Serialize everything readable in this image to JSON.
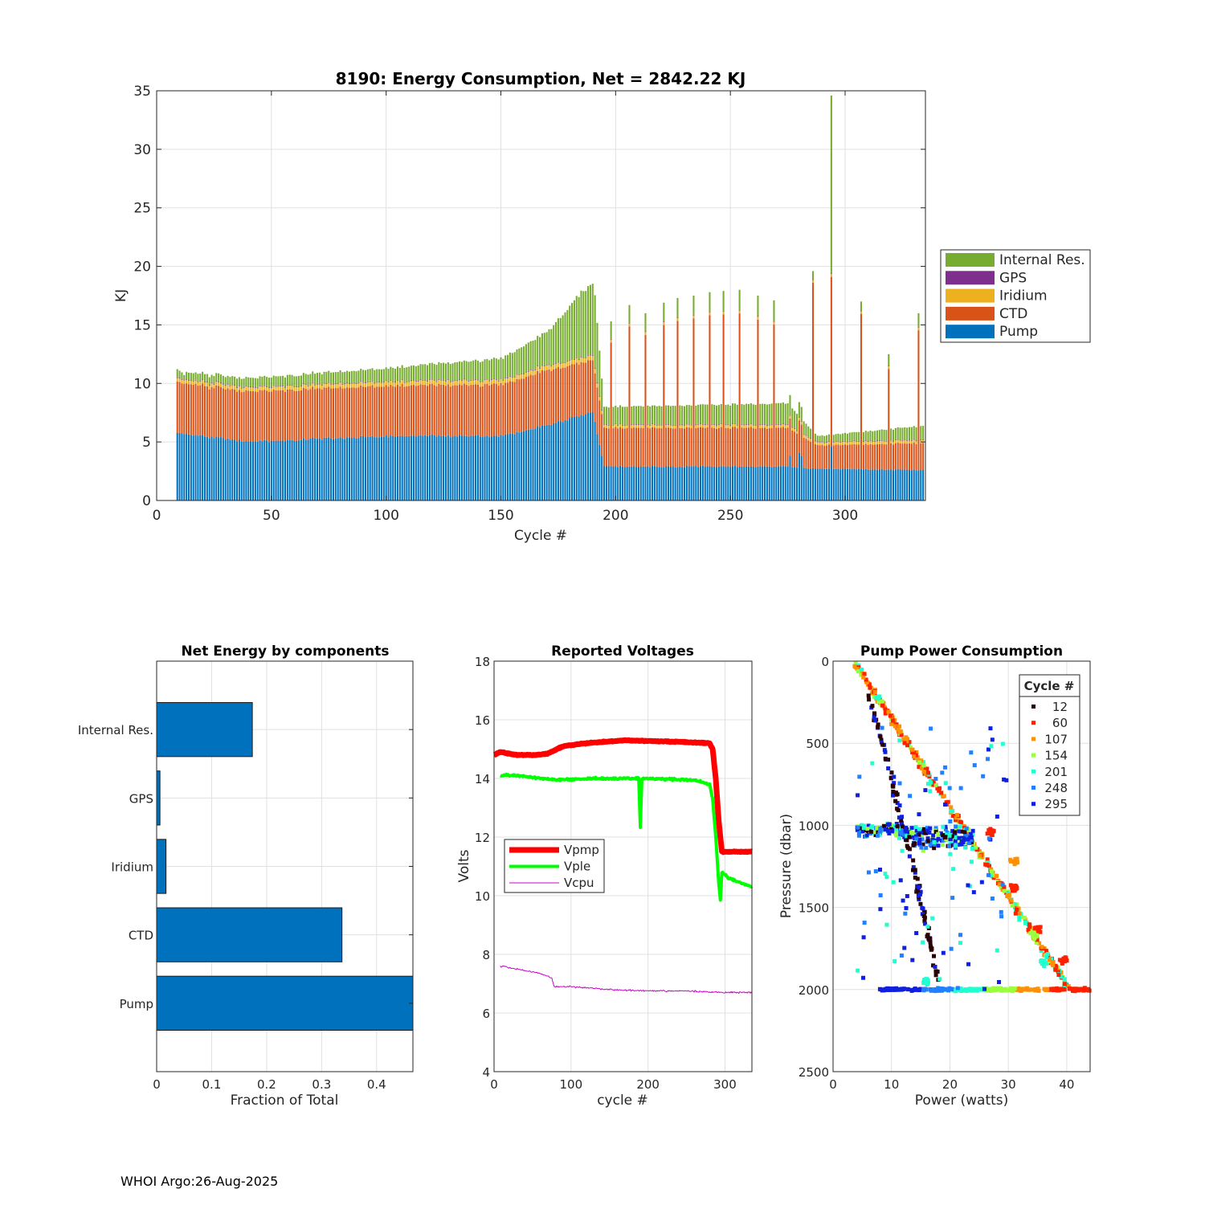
{
  "footer": "WHOI Argo:26-Aug-2025",
  "colors": {
    "pump": "#0072BD",
    "ctd": "#D95319",
    "iridium": "#EDB120",
    "gps": "#7E2F8E",
    "internal": "#77AC30",
    "vpmp": "#FF0000",
    "vple": "#00FF00",
    "vcpu": "#CC00CC",
    "grid": "#E0E0E0"
  },
  "chart_data": [
    {
      "type": "bar",
      "stacked": true,
      "title": "8190: Energy Consumption,  Net = 2842.22 KJ",
      "xlabel": "Cycle #",
      "ylabel": "KJ",
      "xlim": [
        0,
        335
      ],
      "ylim": [
        0,
        35
      ],
      "xticks": [
        0,
        50,
        100,
        150,
        200,
        250,
        300
      ],
      "yticks": [
        0,
        5,
        10,
        15,
        20,
        25,
        30,
        35
      ],
      "legend": [
        "Internal Res.",
        "GPS",
        "Iridium",
        "CTD",
        "Pump"
      ],
      "legend_position": "right-outside",
      "series_profile": {
        "pump_kj": [
          [
            9,
            5.8
          ],
          [
            40,
            5.0
          ],
          [
            100,
            5.5
          ],
          [
            150,
            5.5
          ],
          [
            170,
            6.4
          ],
          [
            190,
            7.6
          ],
          [
            195,
            2.9
          ],
          [
            275,
            2.9
          ],
          [
            288,
            2.7
          ],
          [
            335,
            2.6
          ]
        ],
        "ctd_kj": [
          [
            9,
            4.3
          ],
          [
            100,
            4.3
          ],
          [
            150,
            4.4
          ],
          [
            170,
            4.7
          ],
          [
            190,
            4.4
          ],
          [
            195,
            3.3
          ],
          [
            275,
            3.3
          ],
          [
            288,
            2.0
          ],
          [
            335,
            2.3
          ]
        ],
        "iridium_kj": [
          [
            9,
            0.3
          ],
          [
            190,
            0.4
          ],
          [
            195,
            0.25
          ],
          [
            335,
            0.25
          ]
        ],
        "gps_kj": [
          [
            9,
            0.05
          ],
          [
            335,
            0.05
          ]
        ],
        "internal_kj": [
          [
            9,
            0.6
          ],
          [
            100,
            1.1
          ],
          [
            150,
            1.8
          ],
          [
            170,
            2.8
          ],
          [
            185,
            5.5
          ],
          [
            191,
            6.3
          ],
          [
            195,
            1.5
          ],
          [
            275,
            1.8
          ],
          [
            288,
            0.5
          ],
          [
            335,
            1.2
          ]
        ],
        "tall_peaks": [
          [
            198,
            15.3
          ],
          [
            206,
            16.7
          ],
          [
            213,
            16.0
          ],
          [
            221,
            16.9
          ],
          [
            227,
            17.3
          ],
          [
            234,
            17.5
          ],
          [
            241,
            17.8
          ],
          [
            247,
            17.9
          ],
          [
            254,
            18.0
          ],
          [
            262,
            17.5
          ],
          [
            269,
            17.1
          ],
          [
            286,
            19.6
          ],
          [
            294,
            34.8
          ],
          [
            307,
            17.0
          ],
          [
            319,
            12.5
          ],
          [
            332,
            16.0
          ]
        ]
      }
    },
    {
      "type": "bar",
      "orientation": "horizontal",
      "title": "Net Energy by components",
      "xlabel": "Fraction of Total",
      "categories": [
        "Internal Res.",
        "GPS",
        "Iridium",
        "CTD",
        "Pump"
      ],
      "values": [
        0.174,
        0.006,
        0.017,
        0.337,
        0.466
      ],
      "xlim": [
        0,
        0.466
      ],
      "xticks": [
        "0",
        "0.1",
        "0.2",
        "0.3",
        "0.4"
      ]
    },
    {
      "type": "line",
      "title": "Reported Voltages",
      "xlabel": "cycle #",
      "ylabel": "Volts",
      "xlim": [
        0,
        335
      ],
      "ylim": [
        4,
        18
      ],
      "xticks": [
        "0",
        "100",
        "200",
        "300"
      ],
      "yticks": [
        "4",
        "6",
        "8",
        "10",
        "12",
        "14",
        "16",
        "18"
      ],
      "legend_position": "middle-left",
      "series": [
        {
          "name": "Vpmp",
          "points": [
            [
              0,
              14.8
            ],
            [
              8,
              14.9
            ],
            [
              30,
              14.8
            ],
            [
              55,
              14.8
            ],
            [
              70,
              14.85
            ],
            [
              90,
              15.1
            ],
            [
              120,
              15.2
            ],
            [
              170,
              15.3
            ],
            [
              240,
              15.25
            ],
            [
              280,
              15.2
            ],
            [
              284,
              15.0
            ],
            [
              288,
              14.0
            ],
            [
              292,
              12.5
            ],
            [
              296,
              11.5
            ],
            [
              335,
              11.5
            ]
          ]
        },
        {
          "name": "Vple",
          "points": [
            [
              8,
              14.1
            ],
            [
              30,
              14.1
            ],
            [
              80,
              13.95
            ],
            [
              130,
              14.0
            ],
            [
              188,
              14.0
            ],
            [
              190,
              12.3
            ],
            [
              192,
              14.0
            ],
            [
              260,
              13.95
            ],
            [
              280,
              13.8
            ],
            [
              284,
              13.3
            ],
            [
              288,
              12.0
            ],
            [
              292,
              10.4
            ],
            [
              294,
              9.85
            ],
            [
              296,
              10.8
            ],
            [
              305,
              10.6
            ],
            [
              335,
              10.3
            ]
          ]
        },
        {
          "name": "Vcpu",
          "points": [
            [
              8,
              7.6
            ],
            [
              30,
              7.5
            ],
            [
              60,
              7.35
            ],
            [
              75,
              7.2
            ],
            [
              78,
              6.9
            ],
            [
              100,
              6.9
            ],
            [
              150,
              6.8
            ],
            [
              200,
              6.75
            ],
            [
              250,
              6.75
            ],
            [
              300,
              6.7
            ],
            [
              335,
              6.7
            ]
          ]
        }
      ]
    },
    {
      "type": "scatter",
      "title": "Pump Power Consumption",
      "xlabel": "Power (watts)",
      "ylabel": "Pressure (dbar)",
      "xlim": [
        0,
        44
      ],
      "ylim": [
        0,
        2500
      ],
      "y_reversed": true,
      "xticks": [
        "0",
        "10",
        "20",
        "30",
        "40"
      ],
      "yticks": [
        "0",
        "500",
        "1000",
        "1500",
        "2000",
        "2500"
      ],
      "legend_title": "Cycle #",
      "legend_position": "top-right",
      "legend": [
        {
          "label": "12",
          "color": "#2B0000"
        },
        {
          "label": "60",
          "color": "#FF2000"
        },
        {
          "label": "107",
          "color": "#FF9000"
        },
        {
          "label": "154",
          "color": "#9AFF3C"
        },
        {
          "label": "201",
          "color": "#20FFD0"
        },
        {
          "label": "248",
          "color": "#2080FF"
        },
        {
          "label": "295",
          "color": "#1020E0"
        }
      ],
      "structures": {
        "main_diagonal": [
          [
            3.5,
            0
          ],
          [
            44,
            2000
          ]
        ],
        "upper_diagonal": [
          [
            5,
            0
          ],
          [
            13,
            500
          ],
          [
            20,
            900
          ],
          [
            28,
            1050
          ]
        ],
        "left_diagonal": [
          [
            6,
            200
          ],
          [
            10,
            700
          ],
          [
            15,
            1450
          ],
          [
            18,
            1950
          ]
        ],
        "dense_band_y": 1030,
        "bottom_band_y": 2000,
        "bottom_band_x": [
          8,
          44
        ]
      }
    }
  ]
}
